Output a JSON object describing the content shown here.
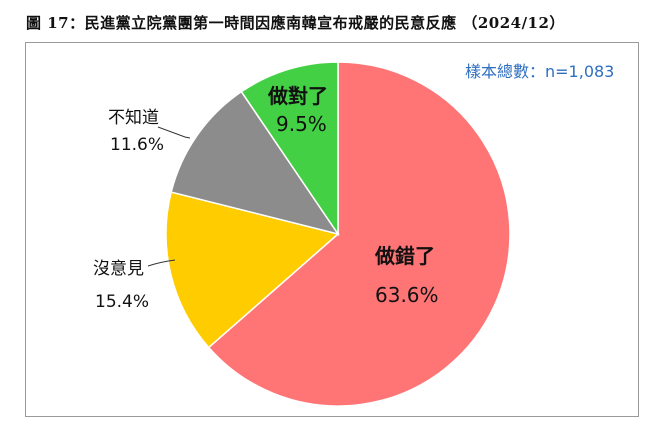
{
  "title": "圖 17：民進黨立院黨團第一時間因應南韓宣布戒嚴的民意反應 （2024/12）",
  "sample_size": "樣本總數：n=1,083",
  "chart_data": {
    "type": "pie",
    "title": "圖 17：民進黨立院黨團第一時間因應南韓宣布戒嚴的民意反應 （2024/12）",
    "annotation": "樣本總數：n=1,083",
    "categories": [
      "做錯了",
      "沒意見",
      "不知道",
      "做對了"
    ],
    "values": [
      63.6,
      15.4,
      11.6,
      9.5
    ],
    "colors": [
      "#ff7575",
      "#ffcc00",
      "#8c8c8c",
      "#44d044"
    ],
    "start_angle": "12 o'clock, clockwise"
  },
  "labels": {
    "wrong": {
      "name": "做錯了",
      "pct": "63.6%"
    },
    "no_opinion": {
      "name": "沒意見",
      "pct": "15.4%"
    },
    "dont_know": {
      "name": "不知道",
      "pct": "11.6%"
    },
    "right": {
      "name": "做對了",
      "pct": "9.5%"
    }
  }
}
